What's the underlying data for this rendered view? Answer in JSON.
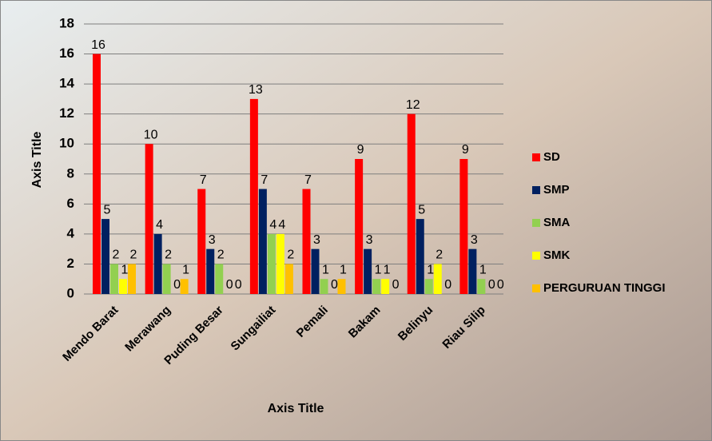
{
  "chart_data": {
    "type": "bar",
    "categories": [
      "Mendo Barat",
      "Merawang",
      "Puding Besar",
      "Sungailiat",
      "Pemali",
      "Bakam",
      "Belinyu",
      "Riau Silip"
    ],
    "series": [
      {
        "name": "SD",
        "color": "#ff0000",
        "values": [
          16,
          10,
          7,
          13,
          7,
          9,
          12,
          9
        ]
      },
      {
        "name": "SMP",
        "color": "#002060",
        "values": [
          5,
          4,
          3,
          7,
          3,
          3,
          5,
          3
        ]
      },
      {
        "name": "SMA",
        "color": "#92d050",
        "values": [
          2,
          2,
          2,
          4,
          1,
          1,
          1,
          1
        ]
      },
      {
        "name": "SMK",
        "color": "#ffff00",
        "values": [
          1,
          0,
          0,
          4,
          0,
          1,
          2,
          0
        ]
      },
      {
        "name": "PERGURUAN TINGGI",
        "color": "#ffc000",
        "values": [
          2,
          1,
          0,
          2,
          1,
          0,
          0,
          0
        ]
      }
    ],
    "ylim": [
      0,
      18
    ],
    "yticks": [
      0,
      2,
      4,
      6,
      8,
      10,
      12,
      14,
      16,
      18
    ],
    "grid": true,
    "x_label": "Axis Title",
    "y_label": "Axis Title",
    "legend": "right"
  }
}
